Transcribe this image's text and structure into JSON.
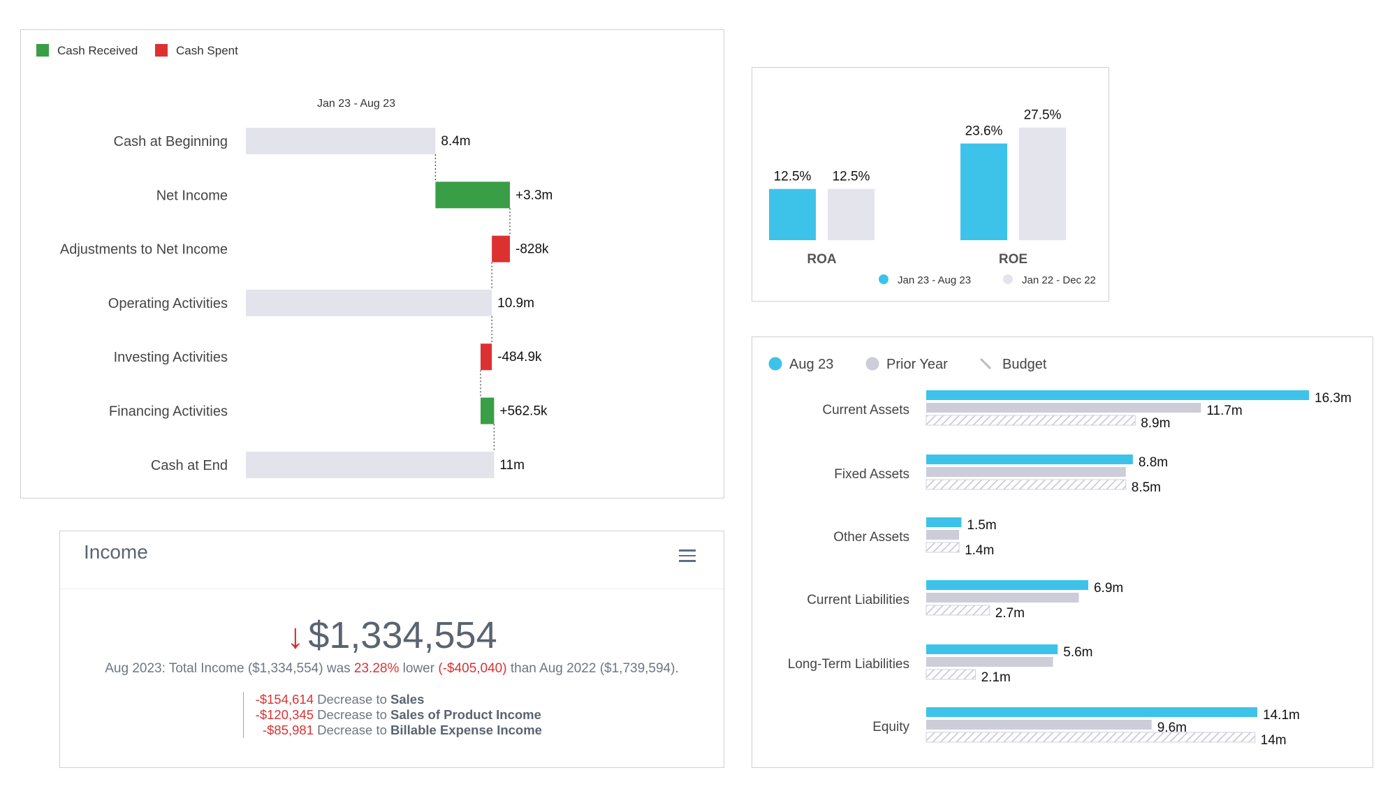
{
  "colors": {
    "cash_received": "#3a9e47",
    "cash_spent": "#dd3131",
    "neutral": "#e3e3eb",
    "current": "#3dc3ea",
    "prior": "#e4e4ec",
    "prior_bar": "#cdcdd9",
    "negative_text": "#d93333"
  },
  "waterfall": {
    "legend": [
      {
        "label": "Cash Received",
        "color": "#3a9e47"
      },
      {
        "label": "Cash Spent",
        "color": "#dd3131"
      }
    ],
    "period": "Jan 23 - Aug 23",
    "scale_max": 11.7,
    "chart_data": {
      "type": "bar",
      "subtype": "waterfall",
      "title": "Jan 23 - Aug 23",
      "categories": [
        "Cash at Beginning",
        "Net Income",
        "Adjustments to Net Income",
        "Operating Activities",
        "Investing Activities",
        "Financing Activities",
        "Cash at End"
      ],
      "items": [
        {
          "label": "Cash at Beginning",
          "kind": "total",
          "start": 0,
          "end": 8.4,
          "value_label": "8.4m"
        },
        {
          "label": "Net Income",
          "kind": "increase",
          "start": 8.4,
          "end": 11.7,
          "value_label": "+3.3m"
        },
        {
          "label": "Adjustments to Net Income",
          "kind": "decrease",
          "start": 11.7,
          "end": 10.9,
          "value_label": "-828k"
        },
        {
          "label": "Operating Activities",
          "kind": "total",
          "start": 0,
          "end": 10.9,
          "value_label": "10.9m"
        },
        {
          "label": "Investing Activities",
          "kind": "decrease",
          "start": 10.9,
          "end": 10.4,
          "value_label": "-484.9k"
        },
        {
          "label": "Financing Activities",
          "kind": "increase",
          "start": 10.4,
          "end": 11.0,
          "value_label": "+562.5k"
        },
        {
          "label": "Cash at End",
          "kind": "total",
          "start": 0,
          "end": 11.0,
          "value_label": "11m"
        }
      ],
      "xlabel": "",
      "ylabel": "",
      "unit": "m"
    }
  },
  "ratios": {
    "ymax": 30,
    "chart_data": {
      "type": "bar",
      "categories": [
        "ROA",
        "ROE"
      ],
      "series": [
        {
          "name": "Jan 23 - Aug 23",
          "values": [
            12.5,
            23.6
          ],
          "labels": [
            "12.5%",
            "23.6%"
          ],
          "color": "#3dc3ea"
        },
        {
          "name": "Jan 22 - Dec 22",
          "values": [
            12.5,
            27.5
          ],
          "labels": [
            "12.5%",
            "27.5%"
          ],
          "color": "#e4e4ec"
        }
      ],
      "unit": "%",
      "legend": "bottom"
    }
  },
  "balance": {
    "legend": [
      {
        "label": "Aug 23",
        "kind": "dot",
        "color": "#3dc3ea"
      },
      {
        "label": "Prior Year",
        "kind": "dot",
        "color": "#cdcdd9"
      },
      {
        "label": "Budget",
        "kind": "hatch",
        "color": "#b9b9c9"
      }
    ],
    "scale_max": 16.3,
    "chart_data": {
      "type": "bar",
      "orientation": "horizontal",
      "categories": [
        "Current Assets",
        "Fixed Assets",
        "Other Assets",
        "Current Liabilities",
        "Long-Term Liabilities",
        "Equity"
      ],
      "series": [
        {
          "name": "Aug 23",
          "values": [
            16.3,
            8.8,
            1.5,
            6.9,
            5.6,
            14.1
          ],
          "labels": [
            "16.3m",
            "8.8m",
            "1.5m",
            "6.9m",
            "5.6m",
            "14.1m"
          ]
        },
        {
          "name": "Prior Year",
          "values": [
            11.7,
            8.5,
            1.4,
            6.5,
            5.4,
            9.6
          ],
          "labels": [
            "11.7m",
            "",
            "",
            "",
            "",
            "9.6m"
          ]
        },
        {
          "name": "Budget",
          "values": [
            8.9,
            8.5,
            1.4,
            2.7,
            2.1,
            14.0
          ],
          "labels": [
            "8.9m",
            "8.5m",
            "1.4m",
            "2.7m",
            "2.1m",
            "14m"
          ]
        }
      ],
      "unit": "m"
    }
  },
  "income": {
    "title": "Income",
    "menu_icon": "hamburger-menu-icon",
    "trend_icon": "arrow-down-icon",
    "arrow_glyph": "↓",
    "total": "$1,334,554",
    "sentence": {
      "p1": "Aug 2023: Total Income ($1,334,554) was ",
      "pct": "23.28%",
      "p2": " lower ",
      "diff": "(-$405,040)",
      "p3": " than Aug 2022 ($1,739,594)."
    },
    "drivers": [
      {
        "amount": "-$154,614",
        "text": "Decrease to",
        "category": "Sales"
      },
      {
        "amount": "-$120,345",
        "text": "Decrease to",
        "category": "Sales of Product Income"
      },
      {
        "amount": "-$85,981",
        "text": "Decrease to",
        "category": "Billable Expense Income"
      }
    ]
  }
}
